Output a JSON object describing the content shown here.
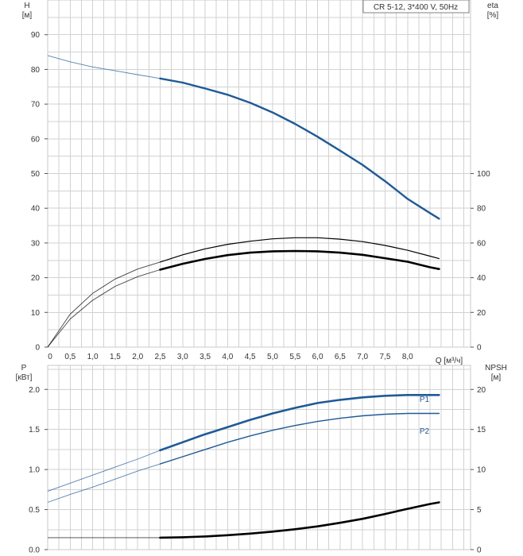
{
  "chart_data": [
    {
      "type": "line",
      "legend_box": "CR 5-12, 3*400 V, 50Hz",
      "legend_position": "top-right",
      "grid": true,
      "y_left": {
        "label_line1": "H",
        "label_line2": "[м]",
        "ticks": [
          "0",
          "10",
          "20",
          "30",
          "40",
          "50",
          "60",
          "70",
          "80",
          "90"
        ],
        "range": [
          0,
          100
        ]
      },
      "y_right": {
        "label_line1": "eta",
        "label_line2": "[%]",
        "ticks": [
          "0",
          "20",
          "40",
          "60",
          "80",
          "100"
        ],
        "range": [
          0,
          200
        ]
      },
      "x": {
        "label": "Q [м³/ч]",
        "ticks": [
          "0",
          "0,5",
          "1,0",
          "1,5",
          "2,0",
          "2,5",
          "3,0",
          "3,5",
          "4,0",
          "4,5",
          "5,0",
          "5,5",
          "6,0",
          "6,5",
          "7,0",
          "7,5",
          "8,0"
        ],
        "range": [
          0,
          9.4
        ]
      },
      "series": [
        {
          "axis": "left",
          "color": "#1f5a96",
          "x": [
            0,
            0.5,
            1.0,
            1.5,
            2.0,
            2.5,
            3.0,
            3.5,
            4.0,
            4.5,
            5.0,
            5.5,
            6.0,
            6.5,
            7.0,
            7.5,
            8.0,
            8.5,
            8.7
          ],
          "y": [
            84,
            82.2,
            80.7,
            79.6,
            78.5,
            77.4,
            76.2,
            74.5,
            72.7,
            70.4,
            67.6,
            64.3,
            60.6,
            56.6,
            52.5,
            47.8,
            42.7,
            38.6,
            37
          ],
          "solid_from": 2.5
        },
        {
          "axis": "left",
          "color": "#000000",
          "x": [
            0,
            0.5,
            1.0,
            1.5,
            2.0,
            2.5,
            3.0,
            3.5,
            4.0,
            4.5,
            5.0,
            5.5,
            6.0,
            6.5,
            7.0,
            7.5,
            8.0,
            8.5,
            8.7
          ],
          "y": [
            0,
            8.1,
            13.5,
            17.5,
            20.3,
            22.3,
            24.0,
            25.4,
            26.5,
            27.2,
            27.6,
            27.7,
            27.6,
            27.2,
            26.6,
            25.6,
            24.6,
            23.0,
            22.5
          ],
          "solid_from": 2.5,
          "width": 2.6
        },
        {
          "axis": "left",
          "color": "#000000",
          "x": [
            0,
            0.5,
            1.0,
            1.5,
            2.0,
            2.5,
            3.0,
            3.5,
            4.0,
            4.5,
            5.0,
            5.5,
            6.0,
            6.5,
            7.0,
            7.5,
            8.0,
            8.5,
            8.7
          ],
          "y": [
            0,
            9.5,
            15.5,
            19.6,
            22.5,
            24.5,
            26.6,
            28.3,
            29.6,
            30.5,
            31.2,
            31.5,
            31.5,
            31.1,
            30.4,
            29.3,
            27.9,
            26.2,
            25.5
          ],
          "solid_from": 2.5,
          "width": 1.2
        }
      ]
    },
    {
      "type": "line",
      "grid": true,
      "y_left": {
        "label_line1": "P",
        "label_line2": "[кВт]",
        "ticks": [
          "0.0",
          "0.5",
          "1.0",
          "1.5",
          "2.0"
        ],
        "range": [
          0,
          2.3
        ]
      },
      "y_right": {
        "label_line1": "NPSH",
        "label_line2": "[м]",
        "ticks": [
          "0",
          "5",
          "10",
          "15",
          "20"
        ],
        "range": [
          0,
          23
        ]
      },
      "x": {
        "range": [
          0,
          9.4
        ]
      },
      "series": [
        {
          "name": "P1",
          "axis": "left",
          "color": "#1f5a96",
          "x": [
            0,
            0.5,
            1.0,
            1.5,
            2.0,
            2.5,
            3.0,
            3.5,
            4.0,
            4.5,
            5.0,
            5.5,
            6.0,
            6.5,
            7.0,
            7.5,
            8.0,
            8.5,
            8.7
          ],
          "y": [
            0.73,
            0.83,
            0.93,
            1.03,
            1.13,
            1.24,
            1.34,
            1.44,
            1.53,
            1.62,
            1.7,
            1.77,
            1.83,
            1.87,
            1.9,
            1.92,
            1.93,
            1.93,
            1.93
          ],
          "solid_from": 2.5,
          "width": 2.6
        },
        {
          "name": "P2",
          "axis": "left",
          "color": "#1f5a96",
          "x": [
            0,
            0.5,
            1.0,
            1.5,
            2.0,
            2.5,
            3.0,
            3.5,
            4.0,
            4.5,
            5.0,
            5.5,
            6.0,
            6.5,
            7.0,
            7.5,
            8.0,
            8.5,
            8.7
          ],
          "y": [
            0.59,
            0.69,
            0.78,
            0.88,
            0.98,
            1.07,
            1.16,
            1.25,
            1.34,
            1.42,
            1.49,
            1.55,
            1.6,
            1.64,
            1.67,
            1.69,
            1.7,
            1.7,
            1.7
          ],
          "solid_from": 2.5,
          "width": 1.4
        },
        {
          "axis": "right",
          "color": "#000000",
          "x": [
            0,
            0.5,
            1.0,
            1.5,
            2.0,
            2.5,
            3.0,
            3.5,
            4.0,
            4.5,
            5.0,
            5.5,
            6.0,
            6.5,
            7.0,
            7.5,
            8.0,
            8.5,
            8.7
          ],
          "y": [
            1.5,
            1.5,
            1.5,
            1.5,
            1.5,
            1.5,
            1.55,
            1.65,
            1.8,
            2.0,
            2.25,
            2.55,
            2.9,
            3.35,
            3.85,
            4.45,
            5.1,
            5.7,
            5.9
          ],
          "solid_from": 2.5,
          "width": 2.6
        }
      ]
    }
  ]
}
